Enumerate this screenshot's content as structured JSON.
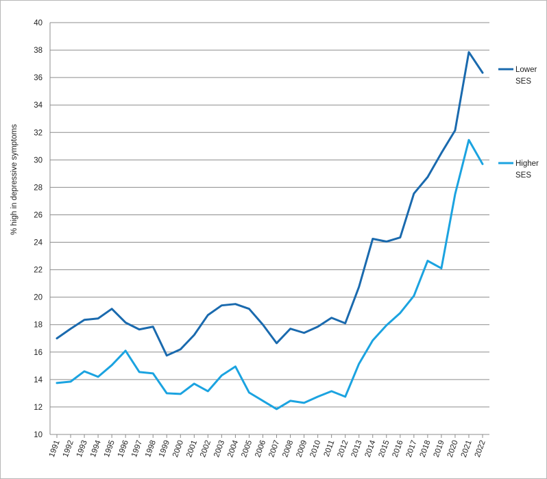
{
  "chart_data": {
    "type": "line",
    "title": "",
    "xlabel": "",
    "ylabel": "% high in depressive symptoms",
    "ylim": [
      10,
      40
    ],
    "y_ticks": [
      10,
      12,
      14,
      16,
      18,
      20,
      22,
      24,
      26,
      28,
      30,
      32,
      34,
      36,
      38,
      40
    ],
    "grid": "horizontal",
    "legend_placement": "right",
    "categories": [
      "1991",
      "1992",
      "1993",
      "1994",
      "1995",
      "1996",
      "1997",
      "1998",
      "1999",
      "2000",
      "2001",
      "2002",
      "2003",
      "2004",
      "2005",
      "2006",
      "2007",
      "2008",
      "2009",
      "2010",
      "2011",
      "2012",
      "2013",
      "2014",
      "2015",
      "2016",
      "2017",
      "2018",
      "2019",
      "2020",
      "2021",
      "2022"
    ],
    "series": [
      {
        "name": "Lower SES",
        "legend_lines": [
          "Lower",
          "SES"
        ],
        "color": "#1a6aae",
        "values": [
          17.0,
          17.7,
          18.35,
          18.45,
          19.15,
          18.15,
          17.65,
          17.85,
          15.75,
          16.2,
          17.25,
          18.7,
          19.4,
          19.5,
          19.15,
          18.0,
          16.65,
          17.7,
          17.4,
          17.85,
          18.5,
          18.1,
          20.75,
          24.25,
          24.05,
          24.35,
          27.55,
          28.75,
          30.5,
          32.15,
          37.85,
          36.35
        ]
      },
      {
        "name": "Higher SES",
        "legend_lines": [
          "Higher",
          "SES"
        ],
        "color": "#1ba3e0",
        "values": [
          13.75,
          13.85,
          14.6,
          14.2,
          15.05,
          16.1,
          14.55,
          14.45,
          13.0,
          12.95,
          13.7,
          13.15,
          14.3,
          14.95,
          13.05,
          12.45,
          11.85,
          12.45,
          12.3,
          12.75,
          13.15,
          12.75,
          15.15,
          16.85,
          17.95,
          18.85,
          20.1,
          22.65,
          22.1,
          27.5,
          31.45,
          29.7
        ]
      }
    ]
  }
}
